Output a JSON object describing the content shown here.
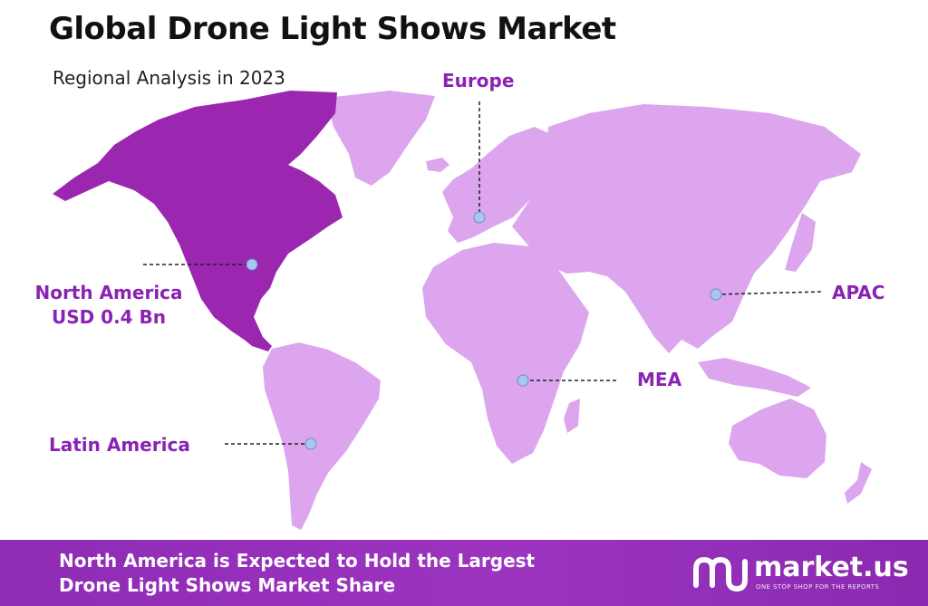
{
  "header": {
    "title": "Global Drone Light Shows Market",
    "subtitle": "Regional Analysis in 2023"
  },
  "regions": {
    "europe": {
      "label": "Europe"
    },
    "north_america": {
      "label": "North America",
      "value": "USD 0.4 Bn",
      "highlight": true
    },
    "apac": {
      "label": "APAC"
    },
    "mea": {
      "label": "MEA"
    },
    "latin_america": {
      "label": "Latin America"
    }
  },
  "colors": {
    "highlight": "#9b27b0",
    "land": "#dca5ee",
    "label": "#8a23b3",
    "marker": "#a9c6ee",
    "footer": "#9431b9"
  },
  "footer": {
    "line1": "North America is Expected to Hold the Largest",
    "line2": "Drone Light Shows Market Share"
  },
  "brand": {
    "name": "market.us",
    "tagline": "ONE STOP SHOP FOR THE REPORTS",
    "logo_icon": "market-us-logo-icon"
  }
}
